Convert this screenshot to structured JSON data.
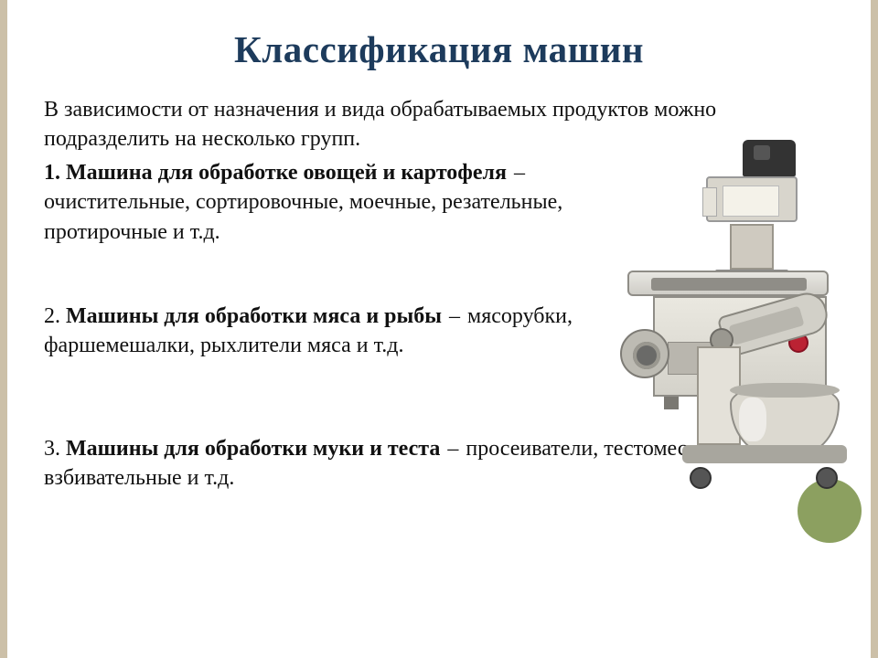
{
  "colors": {
    "side_border": "#ccc0a8",
    "accent_circle": "#8ca060",
    "title_color": "#1d3b5c",
    "text_color": "#111111",
    "background": "#ffffff"
  },
  "typography": {
    "title_fontsize_pt": 31,
    "body_fontsize_pt": 18,
    "family": "Georgia / Times New Roman (serif)"
  },
  "title": "Классификация машин",
  "intro": "В зависимости от назначения и вида обрабатываемых продуктов можно подразделить на несколько групп.",
  "items": [
    {
      "num": "1.",
      "head": "Машина для обработке овощей и картофеля",
      "tail": "очистительные, сортировочные, моечные, резательные, протирочные и т.д.",
      "illustration": "vegetable-peeler-machine"
    },
    {
      "num": "2.",
      "head": "Машины для обработки мяса и рыбы",
      "tail": "мясорубки, фаршемешалки, рыхлители мяса и т.д.",
      "illustration": "meat-grinder-machine"
    },
    {
      "num": "3.",
      "head": "Машины для обработки муки и теста",
      "tail": "просеиватели, тестомесильные, взбивательные и т.д.",
      "illustration": "dough-mixer-machine"
    }
  ],
  "dash": "–"
}
